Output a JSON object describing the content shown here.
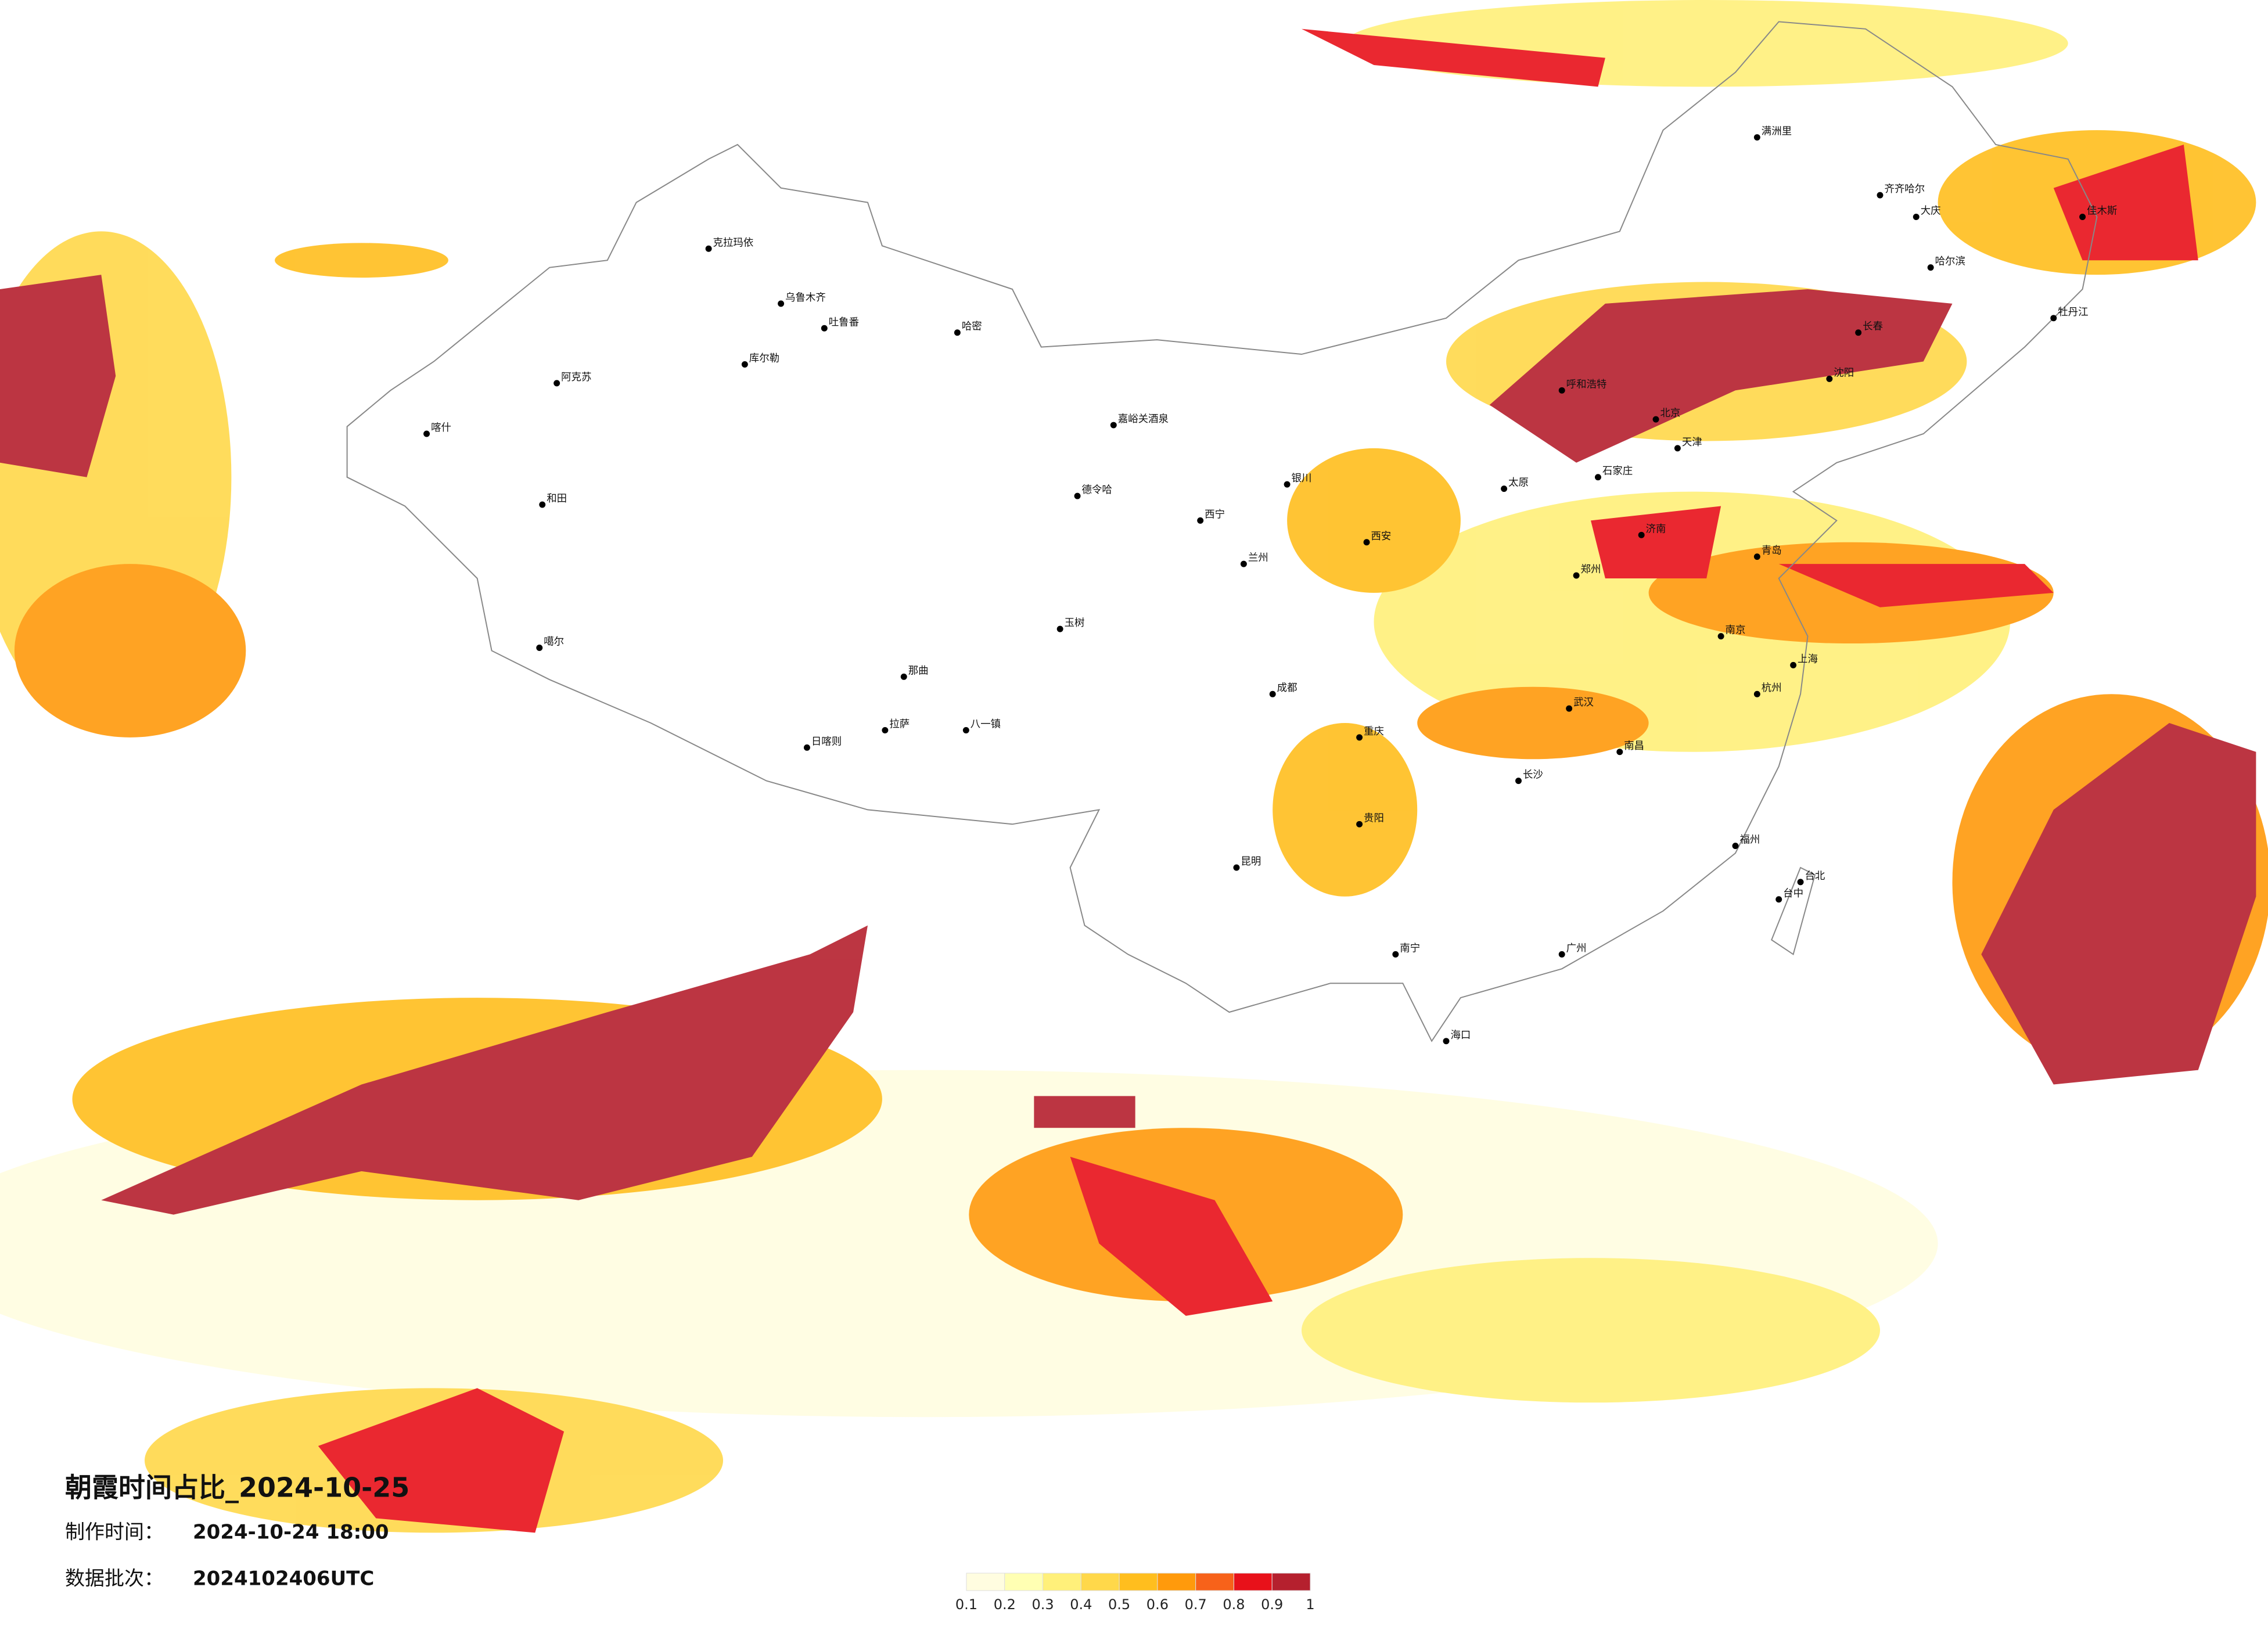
{
  "title": "朝霞时间占比_2024-10-25",
  "made_label": "制作时间：",
  "made_time": "2024-10-24 18:00",
  "batch_label": "数据批次：",
  "batch": "2024102406UTC",
  "legend": {
    "colors": [
      "#fffde0",
      "#ffffb3",
      "#fff07a",
      "#ffd84a",
      "#ffbe1e",
      "#ff9a0c",
      "#f7621a",
      "#e8111a",
      "#b5202e"
    ],
    "ticks": [
      0.1,
      0.2,
      0.3,
      0.4,
      0.5,
      0.6,
      0.7,
      0.8,
      0.9,
      1
    ]
  },
  "cities": [
    "克拉玛依",
    "乌鲁木齐",
    "吐鲁番",
    "哈密",
    "库尔勒",
    "阿克苏",
    "和田",
    "喀什",
    "噶尔",
    "日喀则",
    "拉萨",
    "八一镇",
    "那曲",
    "玉树",
    "德令哈",
    "嘉峪关酒泉",
    "西宁",
    "兰州",
    "银川",
    "呼和浩特",
    "北京",
    "天津",
    "石家庄",
    "太原",
    "济南",
    "青岛",
    "郑州",
    "西安",
    "成都",
    "重庆",
    "武汉",
    "南京",
    "上海",
    "杭州",
    "长沙",
    "南昌",
    "福州",
    "贵阳",
    "昆明",
    "南宁",
    "广州",
    "海口",
    "台北",
    "台中",
    "沈阳",
    "长春",
    "哈尔滨",
    "大庆",
    "齐齐哈尔",
    "牡丹江",
    "佳木斯",
    "满洲里"
  ]
}
